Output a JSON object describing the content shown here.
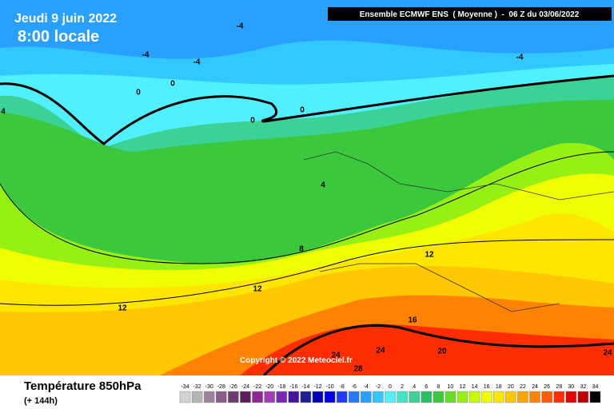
{
  "header": {
    "date": "Jeudi 9 juin 2022",
    "time": "8:00 locale",
    "run": "Ensemble ECMWF ENS  ( Moyenne )  -  06 Z du 03/06/2022"
  },
  "contour_labels": [
    -4,
    -4,
    -4,
    -4,
    0,
    0,
    0,
    0,
    4,
    4,
    8,
    12,
    12,
    12,
    16,
    20,
    24,
    24,
    28,
    24
  ],
  "copyright": "Copyright © 2022 Meteociel.fr",
  "footer": {
    "title": "Température 850hPa",
    "lead": "(+ 144h)"
  },
  "colorbar": {
    "ticks": [
      -34,
      -32,
      -30,
      -28,
      -26,
      -24,
      -22,
      -20,
      -18,
      -16,
      -14,
      -12,
      -10,
      -8,
      -6,
      -4,
      -2,
      0,
      2,
      4,
      6,
      8,
      10,
      12,
      14,
      16,
      18,
      20,
      22,
      24,
      26,
      28,
      30,
      32,
      34
    ],
    "colors": [
      "#d2d2d2",
      "#b4b4b4",
      "#a082a0",
      "#8c5a8c",
      "#6e3c6e",
      "#5a1e5a",
      "#8c2896",
      "#a03cb4",
      "#7828b4",
      "#4614a0",
      "#1e1e96",
      "#0000b4",
      "#0000e6",
      "#1e3cff",
      "#2878ff",
      "#28a0ff",
      "#32c8ff",
      "#50f0ff",
      "#3ce6c8",
      "#3cd296",
      "#28be64",
      "#3cc83c",
      "#64dc28",
      "#96f014",
      "#c8fa00",
      "#f0ff00",
      "#ffe600",
      "#ffc800",
      "#ffa500",
      "#ff8200",
      "#ff5a00",
      "#ff2d00",
      "#e60000",
      "#be0000",
      "#000000"
    ]
  }
}
